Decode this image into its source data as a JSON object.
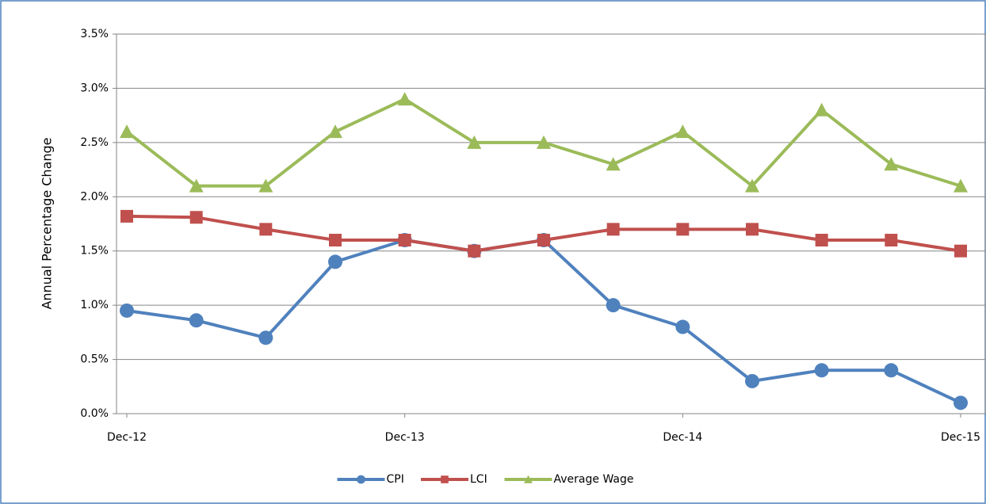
{
  "chart_data": {
    "type": "line",
    "y_label": "Annual Percentage Change",
    "categories": [
      "Dec-12",
      null,
      null,
      null,
      "Dec-13",
      null,
      null,
      null,
      "Dec-14",
      null,
      null,
      null,
      "Dec-15"
    ],
    "series": [
      {
        "name": "CPI",
        "color": "#4f81bd",
        "marker": "circle",
        "values": [
          0.95,
          0.86,
          0.7,
          1.4,
          1.6,
          1.5,
          1.6,
          1.0,
          0.8,
          0.3,
          0.4,
          0.4,
          0.1
        ]
      },
      {
        "name": "LCI",
        "color": "#c0504d",
        "marker": "square",
        "values": [
          1.82,
          1.81,
          1.7,
          1.6,
          1.6,
          1.5,
          1.6,
          1.7,
          1.7,
          1.7,
          1.6,
          1.6,
          1.5
        ]
      },
      {
        "name": "Average Wage",
        "color": "#9bbb59",
        "marker": "triangle",
        "values": [
          2.6,
          2.1,
          2.1,
          2.6,
          2.9,
          2.5,
          2.5,
          2.3,
          2.6,
          2.1,
          2.8,
          2.3,
          2.1
        ]
      }
    ],
    "ylim": [
      0,
      3.5
    ],
    "yticks": [
      {
        "value": 0,
        "label": "0.0%"
      },
      {
        "value": 0.5,
        "label": "0.5%"
      },
      {
        "value": 1,
        "label": "1.0%"
      },
      {
        "value": 1.5,
        "label": "1.5%"
      },
      {
        "value": 2,
        "label": "2.0%"
      },
      {
        "value": 2.5,
        "label": "2.5%"
      },
      {
        "value": 3,
        "label": "3.0%"
      },
      {
        "value": 3.5,
        "label": "3.5%"
      }
    ],
    "grid": true,
    "legend": "bottom"
  }
}
